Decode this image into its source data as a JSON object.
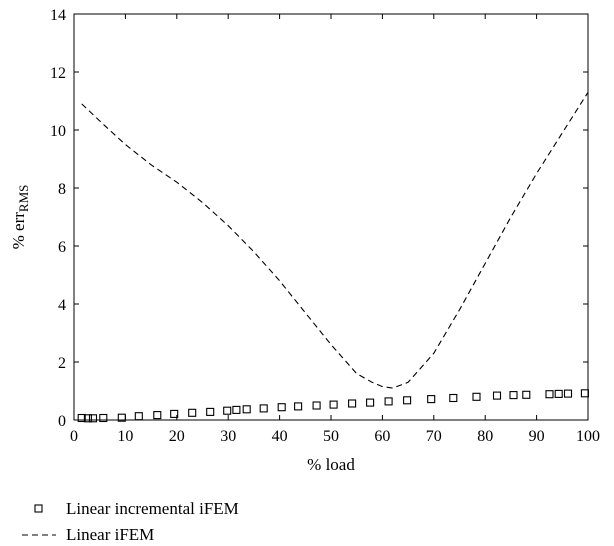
{
  "chart_data": {
    "type": "line",
    "xlabel": "% load",
    "ylabel_main": "% err",
    "ylabel_sub": "RMS",
    "xlim": [
      0,
      100
    ],
    "ylim": [
      0,
      14
    ],
    "xticks": [
      0,
      10,
      20,
      30,
      40,
      50,
      60,
      70,
      80,
      90,
      100
    ],
    "yticks": [
      0,
      2,
      4,
      6,
      8,
      10,
      12,
      14
    ],
    "grid": false,
    "legend_placement": "bottom-left, below plot",
    "series": [
      {
        "name": "Linear incremental iFEM",
        "style": "square-markers",
        "color": "#000000",
        "x": [
          1.5,
          2.7,
          3.7,
          5.7,
          9.3,
          12.6,
          16.2,
          19.5,
          23.0,
          26.5,
          29.8,
          31.6,
          33.6,
          36.9,
          40.4,
          43.6,
          47.2,
          50.5,
          54.1,
          57.6,
          61.2,
          64.8,
          69.5,
          73.8,
          78.3,
          82.3,
          85.5,
          88.0,
          92.5,
          94.3,
          96.1,
          99.4
        ],
        "y": [
          0.07,
          0.06,
          0.06,
          0.07,
          0.08,
          0.13,
          0.17,
          0.21,
          0.25,
          0.28,
          0.32,
          0.35,
          0.37,
          0.4,
          0.44,
          0.47,
          0.5,
          0.53,
          0.57,
          0.6,
          0.64,
          0.68,
          0.72,
          0.76,
          0.8,
          0.84,
          0.86,
          0.87,
          0.89,
          0.9,
          0.91,
          0.92
        ]
      },
      {
        "name": "Linear iFEM",
        "style": "dashed-line",
        "color": "#000000",
        "x": [
          1.5,
          3,
          6,
          10,
          15,
          20,
          25,
          30,
          35,
          40,
          45,
          50,
          55,
          58,
          60,
          62,
          65,
          70,
          75,
          80,
          85,
          90,
          95,
          100
        ],
        "y": [
          10.9,
          10.65,
          10.15,
          9.5,
          8.8,
          8.2,
          7.5,
          6.7,
          5.8,
          4.8,
          3.7,
          2.6,
          1.6,
          1.3,
          1.15,
          1.1,
          1.3,
          2.3,
          3.8,
          5.4,
          7.0,
          8.5,
          9.9,
          11.3
        ]
      }
    ]
  }
}
